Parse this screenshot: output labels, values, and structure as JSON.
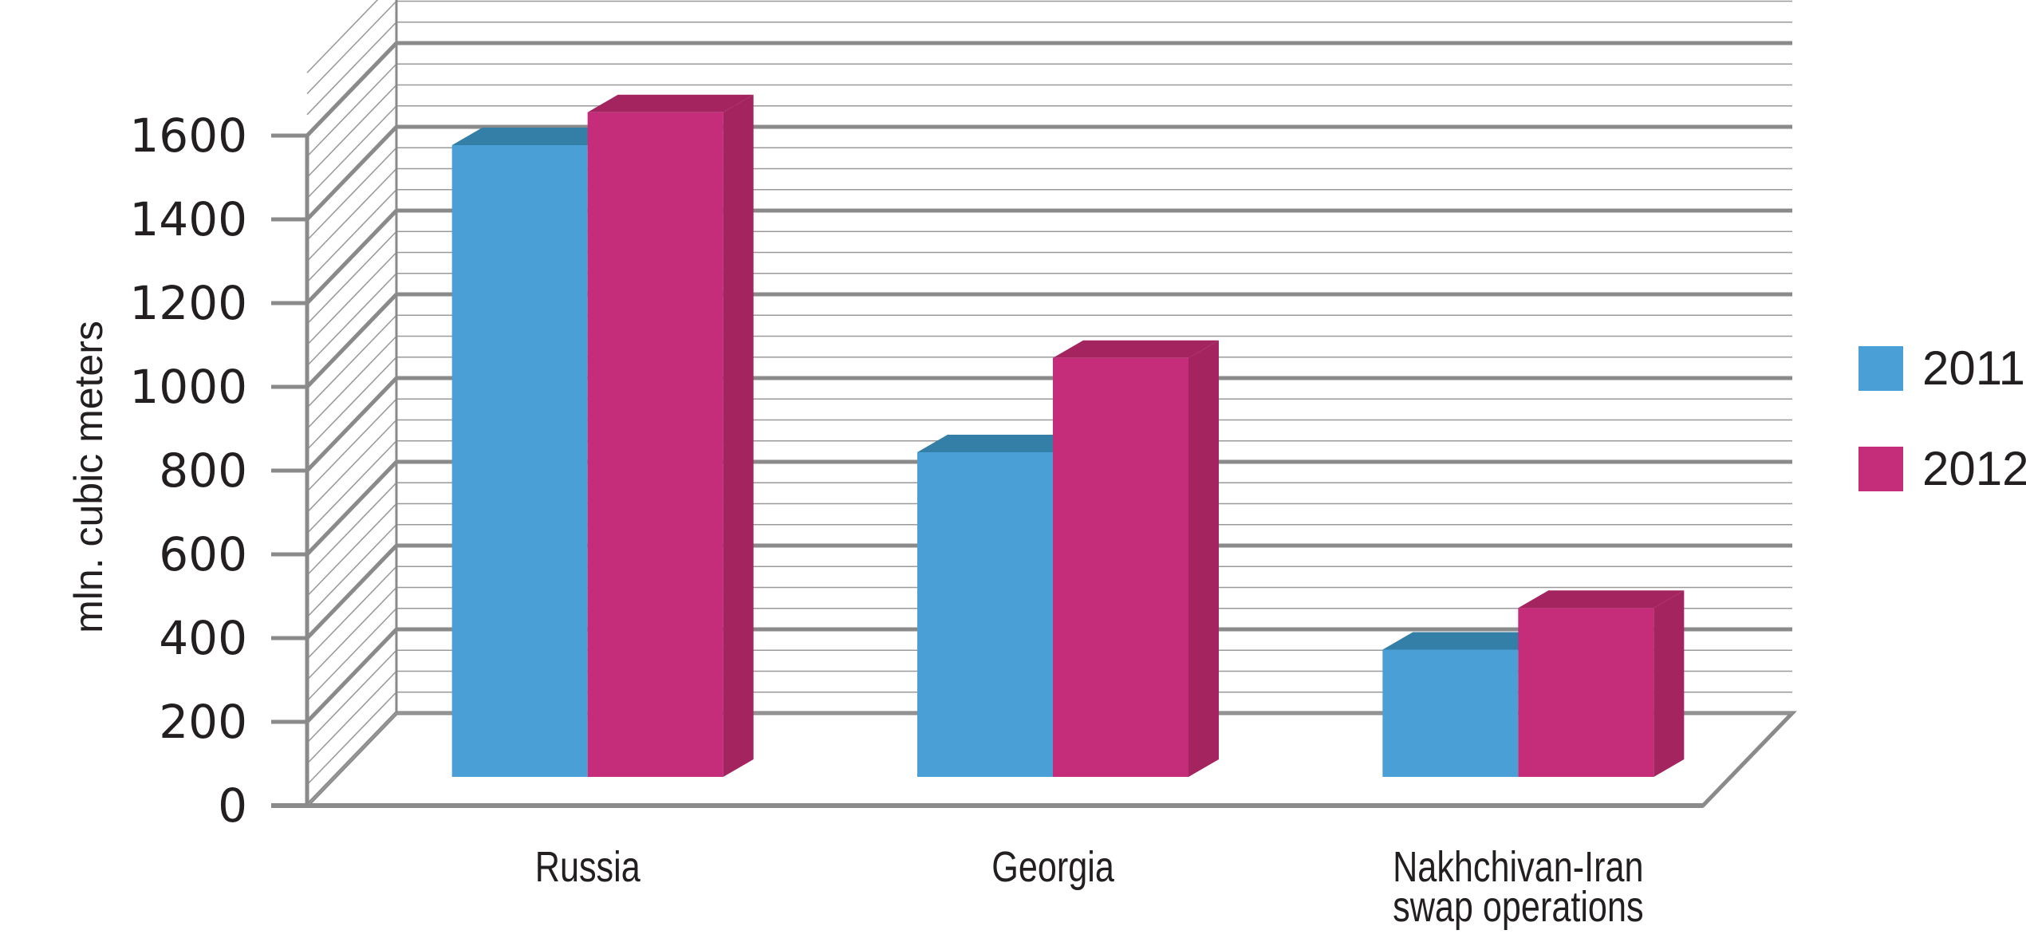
{
  "chart_data": {
    "type": "bar",
    "categories": [
      "Russia",
      "Georgia",
      "Nakhchivan-Iran\nswap operations"
    ],
    "series": [
      {
        "name": "2011",
        "values": [
          1440,
          740,
          290
        ]
      },
      {
        "name": "2012",
        "values": [
          1515,
          955,
          385
        ]
      }
    ],
    "ylabel": "mln. cubic meters",
    "xlabel": "",
    "ylim": [
      0,
      1600
    ],
    "yticks": [
      0,
      200,
      400,
      600,
      800,
      1000,
      1200,
      1400,
      1600
    ],
    "grid": true,
    "three_d": true,
    "legend_position": "right",
    "colors": {
      "2011": "#4aa0d6",
      "2011_top": "#347fa8",
      "2012": "#c52d7b",
      "2012_side": "#a3245f",
      "2012_top": "#a3245f",
      "grid": "#8a8a8a"
    }
  }
}
